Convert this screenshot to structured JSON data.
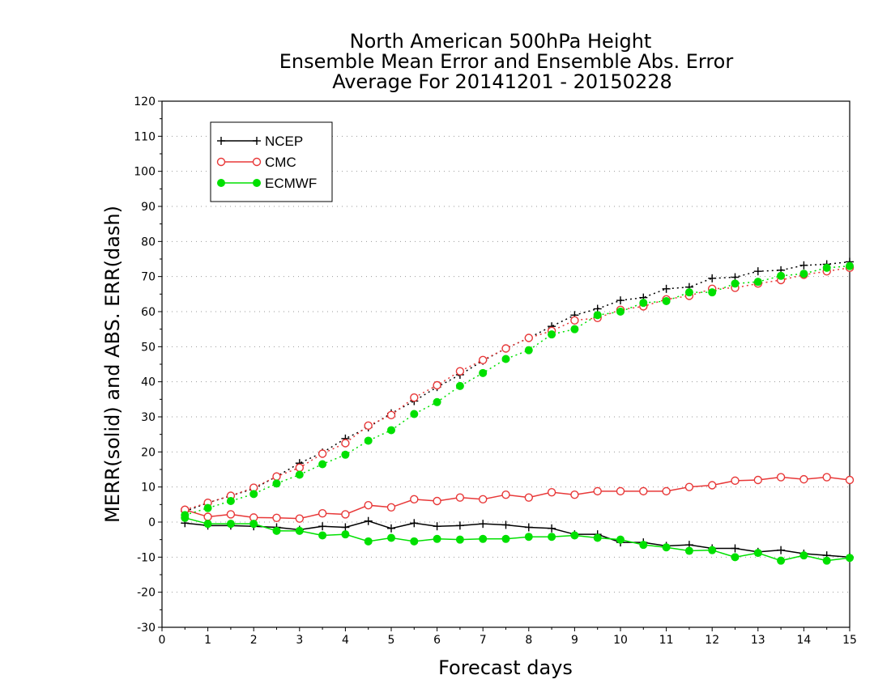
{
  "chart_data": {
    "type": "line",
    "title": [
      "North American 500hPa Height",
      "Ensemble Mean Error and Ensemble Abs. Error",
      "Average For 20141201 - 20150228"
    ],
    "xlabel": "Forecast days",
    "ylabel": "MERR(solid) and ABS. ERR(dash)",
    "xlim": [
      0,
      15
    ],
    "ylim": [
      -30,
      120
    ],
    "xticks": [
      0,
      1,
      2,
      3,
      4,
      5,
      6,
      7,
      8,
      9,
      10,
      11,
      12,
      13,
      14,
      15
    ],
    "yticks": [
      -30,
      -20,
      -10,
      0,
      10,
      20,
      30,
      40,
      50,
      60,
      70,
      80,
      90,
      100,
      110,
      120
    ],
    "grid": "horizontal dotted",
    "legend_position": "top-left",
    "x": [
      0.5,
      1,
      1.5,
      2,
      2.5,
      3,
      3.5,
      4,
      4.5,
      5,
      5.5,
      6,
      6.5,
      7,
      7.5,
      8,
      8.5,
      9,
      9.5,
      10,
      10.5,
      11,
      11.5,
      12,
      12.5,
      13,
      13.5,
      14,
      14.5,
      15
    ],
    "series": [
      {
        "name": "NCEP",
        "color": "#000000",
        "marker": "plus",
        "merr": [
          -0.3,
          -1,
          -1,
          -1.2,
          -1.5,
          -2.2,
          -1.2,
          -1.5,
          0.3,
          -1.8,
          -0.3,
          -1.2,
          -1,
          -0.5,
          -0.8,
          -1.5,
          -1.8,
          -3.5,
          -3.5,
          -5.8,
          -5.8,
          -6.8,
          -6.5,
          -7.5,
          -7.5,
          -8.5,
          -8,
          -9,
          -9.5,
          -10
        ],
        "abs_err": [
          3,
          5.5,
          7.5,
          9.5,
          13,
          16.8,
          19.8,
          23.8,
          27,
          31,
          34.5,
          38.5,
          42,
          46,
          49.5,
          52.5,
          55.8,
          59,
          60.8,
          63.2,
          64,
          66.5,
          67,
          69.5,
          69.8,
          71.5,
          71.8,
          73.2,
          73.5,
          74.2
        ]
      },
      {
        "name": "CMC",
        "color": "#e83838",
        "marker": "open-circle",
        "merr": [
          3.5,
          1.5,
          2.2,
          1.3,
          1.2,
          1,
          2.5,
          2.2,
          4.8,
          4.2,
          6.5,
          6,
          7,
          6.5,
          7.8,
          7,
          8.5,
          7.8,
          8.8,
          8.8,
          8.8,
          8.8,
          10,
          10.5,
          11.8,
          12,
          12.8,
          12.2,
          12.8,
          12
        ],
        "abs_err": [
          3.5,
          5.5,
          7.5,
          9.8,
          13,
          15.5,
          19.5,
          22.5,
          27.5,
          30.5,
          35.5,
          39,
          43,
          46.2,
          49.5,
          52.5,
          54.5,
          57.5,
          58.2,
          60.5,
          61.5,
          63.5,
          64.5,
          66.5,
          66.8,
          68,
          69,
          70.5,
          71.5,
          72.5
        ]
      },
      {
        "name": "ECMWF",
        "color": "#00e000",
        "marker": "filled-circle",
        "merr": [
          1.2,
          -0.5,
          -0.5,
          -0.5,
          -2.5,
          -2.5,
          -3.8,
          -3.5,
          -5.5,
          -4.5,
          -5.5,
          -4.8,
          -5,
          -4.8,
          -4.8,
          -4.2,
          -4.2,
          -3.8,
          -4.5,
          -5,
          -6.5,
          -7.2,
          -8.2,
          -8,
          -10,
          -8.8,
          -11,
          -9.5,
          -11,
          -10.2
        ],
        "abs_err": [
          2,
          4,
          6,
          8,
          11,
          13.5,
          16.5,
          19.2,
          23.2,
          26.2,
          30.8,
          34.2,
          38.8,
          42.5,
          46.5,
          49,
          53.5,
          55,
          59,
          60,
          62.5,
          63,
          65.5,
          65.5,
          68,
          68.5,
          70.2,
          70.8,
          72.5,
          73
        ]
      }
    ]
  }
}
